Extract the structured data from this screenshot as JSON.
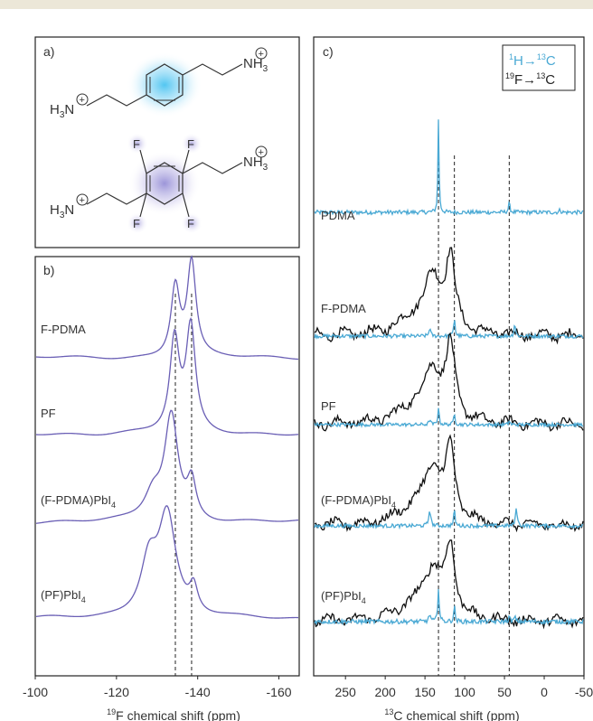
{
  "chart_data": [
    {
      "panel": "a)",
      "type": "diagram",
      "molecules": [
        "PDMA",
        "F-PDMA"
      ],
      "atom_labels": {
        "nh3": "NH",
        "nh3_sub": "3",
        "h3n": "H",
        "h3n_sub": "3",
        "h3n_n": "N",
        "plus": "+",
        "fluorine": "F"
      }
    },
    {
      "panel": "b)",
      "type": "line",
      "xlabel_sup": "19",
      "xlabel": "F chemical shift (ppm)",
      "xlim": [
        -100,
        -165
      ],
      "xticks": [
        "-100",
        "-120",
        "-140",
        "-160"
      ],
      "ytitle": "",
      "ref_lines_ppm": [
        -134.5,
        -138.5
      ],
      "series": [
        {
          "name": "F-PDMA",
          "name_sub": "",
          "peaks": [
            {
              "x": -134.5,
              "h": 0.75,
              "w": 1.3
            },
            {
              "x": -138.5,
              "h": 1.0,
              "w": 1.3
            }
          ],
          "color": "#6a5fb5"
        },
        {
          "name": "PF",
          "name_sub": "",
          "peaks": [
            {
              "x": -134.3,
              "h": 0.85,
              "w": 1.4
            },
            {
              "x": -138.3,
              "h": 0.95,
              "w": 1.4
            }
          ],
          "color": "#6a5fb5"
        },
        {
          "name": "(F-PDMA)PbI",
          "name_sub": "4",
          "peaks": [
            {
              "x": -133.5,
              "h": 1.0,
              "w": 2.0
            },
            {
              "x": -129.0,
              "h": 0.25,
              "w": 2.5
            },
            {
              "x": -138.5,
              "h": 0.35,
              "w": 1.3
            }
          ],
          "color": "#6a5fb5"
        },
        {
          "name": "(PF)PbI",
          "name_sub": "4",
          "peaks": [
            {
              "x": -132.5,
              "h": 1.0,
              "w": 2.6
            },
            {
              "x": -128.0,
              "h": 0.55,
              "w": 2.5
            },
            {
              "x": -139.0,
              "h": 0.25,
              "w": 1.2
            }
          ],
          "color": "#6a5fb5"
        }
      ]
    },
    {
      "panel": "c)",
      "type": "line",
      "xlabel_sup": "13",
      "xlabel": "C chemical shift (ppm)",
      "xlim": [
        290,
        -50
      ],
      "xticks": [
        "250",
        "200",
        "150",
        "100",
        "50",
        "0",
        "-50"
      ],
      "xtick_values": [
        250,
        200,
        150,
        100,
        50,
        0,
        -50
      ],
      "ref_lines_ppm": [
        133,
        113,
        44
      ],
      "legend": {
        "position": "top-right",
        "entries": [
          {
            "pre_sup": "1",
            "a": "H→",
            "sup": "13",
            "b": "C",
            "color": "#4aa9d4"
          },
          {
            "pre_sup": "19",
            "a": "F→",
            "sup": "13",
            "b": "C",
            "color": "#222222"
          }
        ]
      },
      "series": [
        {
          "name": "PDMA",
          "name_sub": "",
          "cp_H": [
            {
              "x": 133,
              "h": 1.6,
              "w": 0.8
            },
            {
              "x": 44,
              "h": 0.15,
              "w": 1.2
            },
            {
              "x": -20,
              "h": 0.05,
              "w": 1.0
            }
          ],
          "cp_F": []
        },
        {
          "name": "F-PDMA",
          "name_sub": "",
          "cp_H": [
            {
              "x": 144,
              "h": 0.15,
              "w": 1.2
            },
            {
              "x": 113,
              "h": 0.35,
              "w": 1.0
            },
            {
              "x": 37,
              "h": 0.25,
              "w": 1.0
            }
          ],
          "cp_F": [
            {
              "x": 118,
              "h": 1.0,
              "w": 7
            },
            {
              "x": 140,
              "h": 0.75,
              "w": 14
            },
            {
              "x": 165,
              "h": 0.2,
              "w": 25
            }
          ]
        },
        {
          "name": "PF",
          "name_sub": "",
          "cp_H": [
            {
              "x": 144,
              "h": 0.1,
              "w": 1.2
            },
            {
              "x": 133,
              "h": 0.35,
              "w": 1.0
            },
            {
              "x": 113,
              "h": 0.25,
              "w": 1.0
            },
            {
              "x": 44,
              "h": 0.08,
              "w": 1.0
            }
          ],
          "cp_F": [
            {
              "x": 118,
              "h": 1.0,
              "w": 7
            },
            {
              "x": 140,
              "h": 0.7,
              "w": 14
            },
            {
              "x": 165,
              "h": 0.2,
              "w": 25
            }
          ]
        },
        {
          "name": "(F-PDMA)PbI",
          "name_sub": "4",
          "cp_H": [
            {
              "x": 144,
              "h": 0.3,
              "w": 1.4
            },
            {
              "x": 113,
              "h": 0.3,
              "w": 1.0
            },
            {
              "x": 35,
              "h": 0.35,
              "w": 1.2
            }
          ],
          "cp_F": [
            {
              "x": 118,
              "h": 1.0,
              "w": 7
            },
            {
              "x": 140,
              "h": 0.75,
              "w": 14
            },
            {
              "x": 165,
              "h": 0.2,
              "w": 25
            }
          ]
        },
        {
          "name": "(PF)PbI",
          "name_sub": "4",
          "cp_H": [
            {
              "x": 144,
              "h": 0.12,
              "w": 1.2
            },
            {
              "x": 133,
              "h": 0.55,
              "w": 1.0
            },
            {
              "x": 113,
              "h": 0.25,
              "w": 1.0
            },
            {
              "x": 44,
              "h": 0.08,
              "w": 1.0
            },
            {
              "x": 37,
              "h": 0.08,
              "w": 1.0
            }
          ],
          "cp_F": [
            {
              "x": 118,
              "h": 1.0,
              "w": 7
            },
            {
              "x": 140,
              "h": 0.7,
              "w": 14
            },
            {
              "x": 165,
              "h": 0.18,
              "w": 25
            }
          ]
        }
      ]
    }
  ]
}
